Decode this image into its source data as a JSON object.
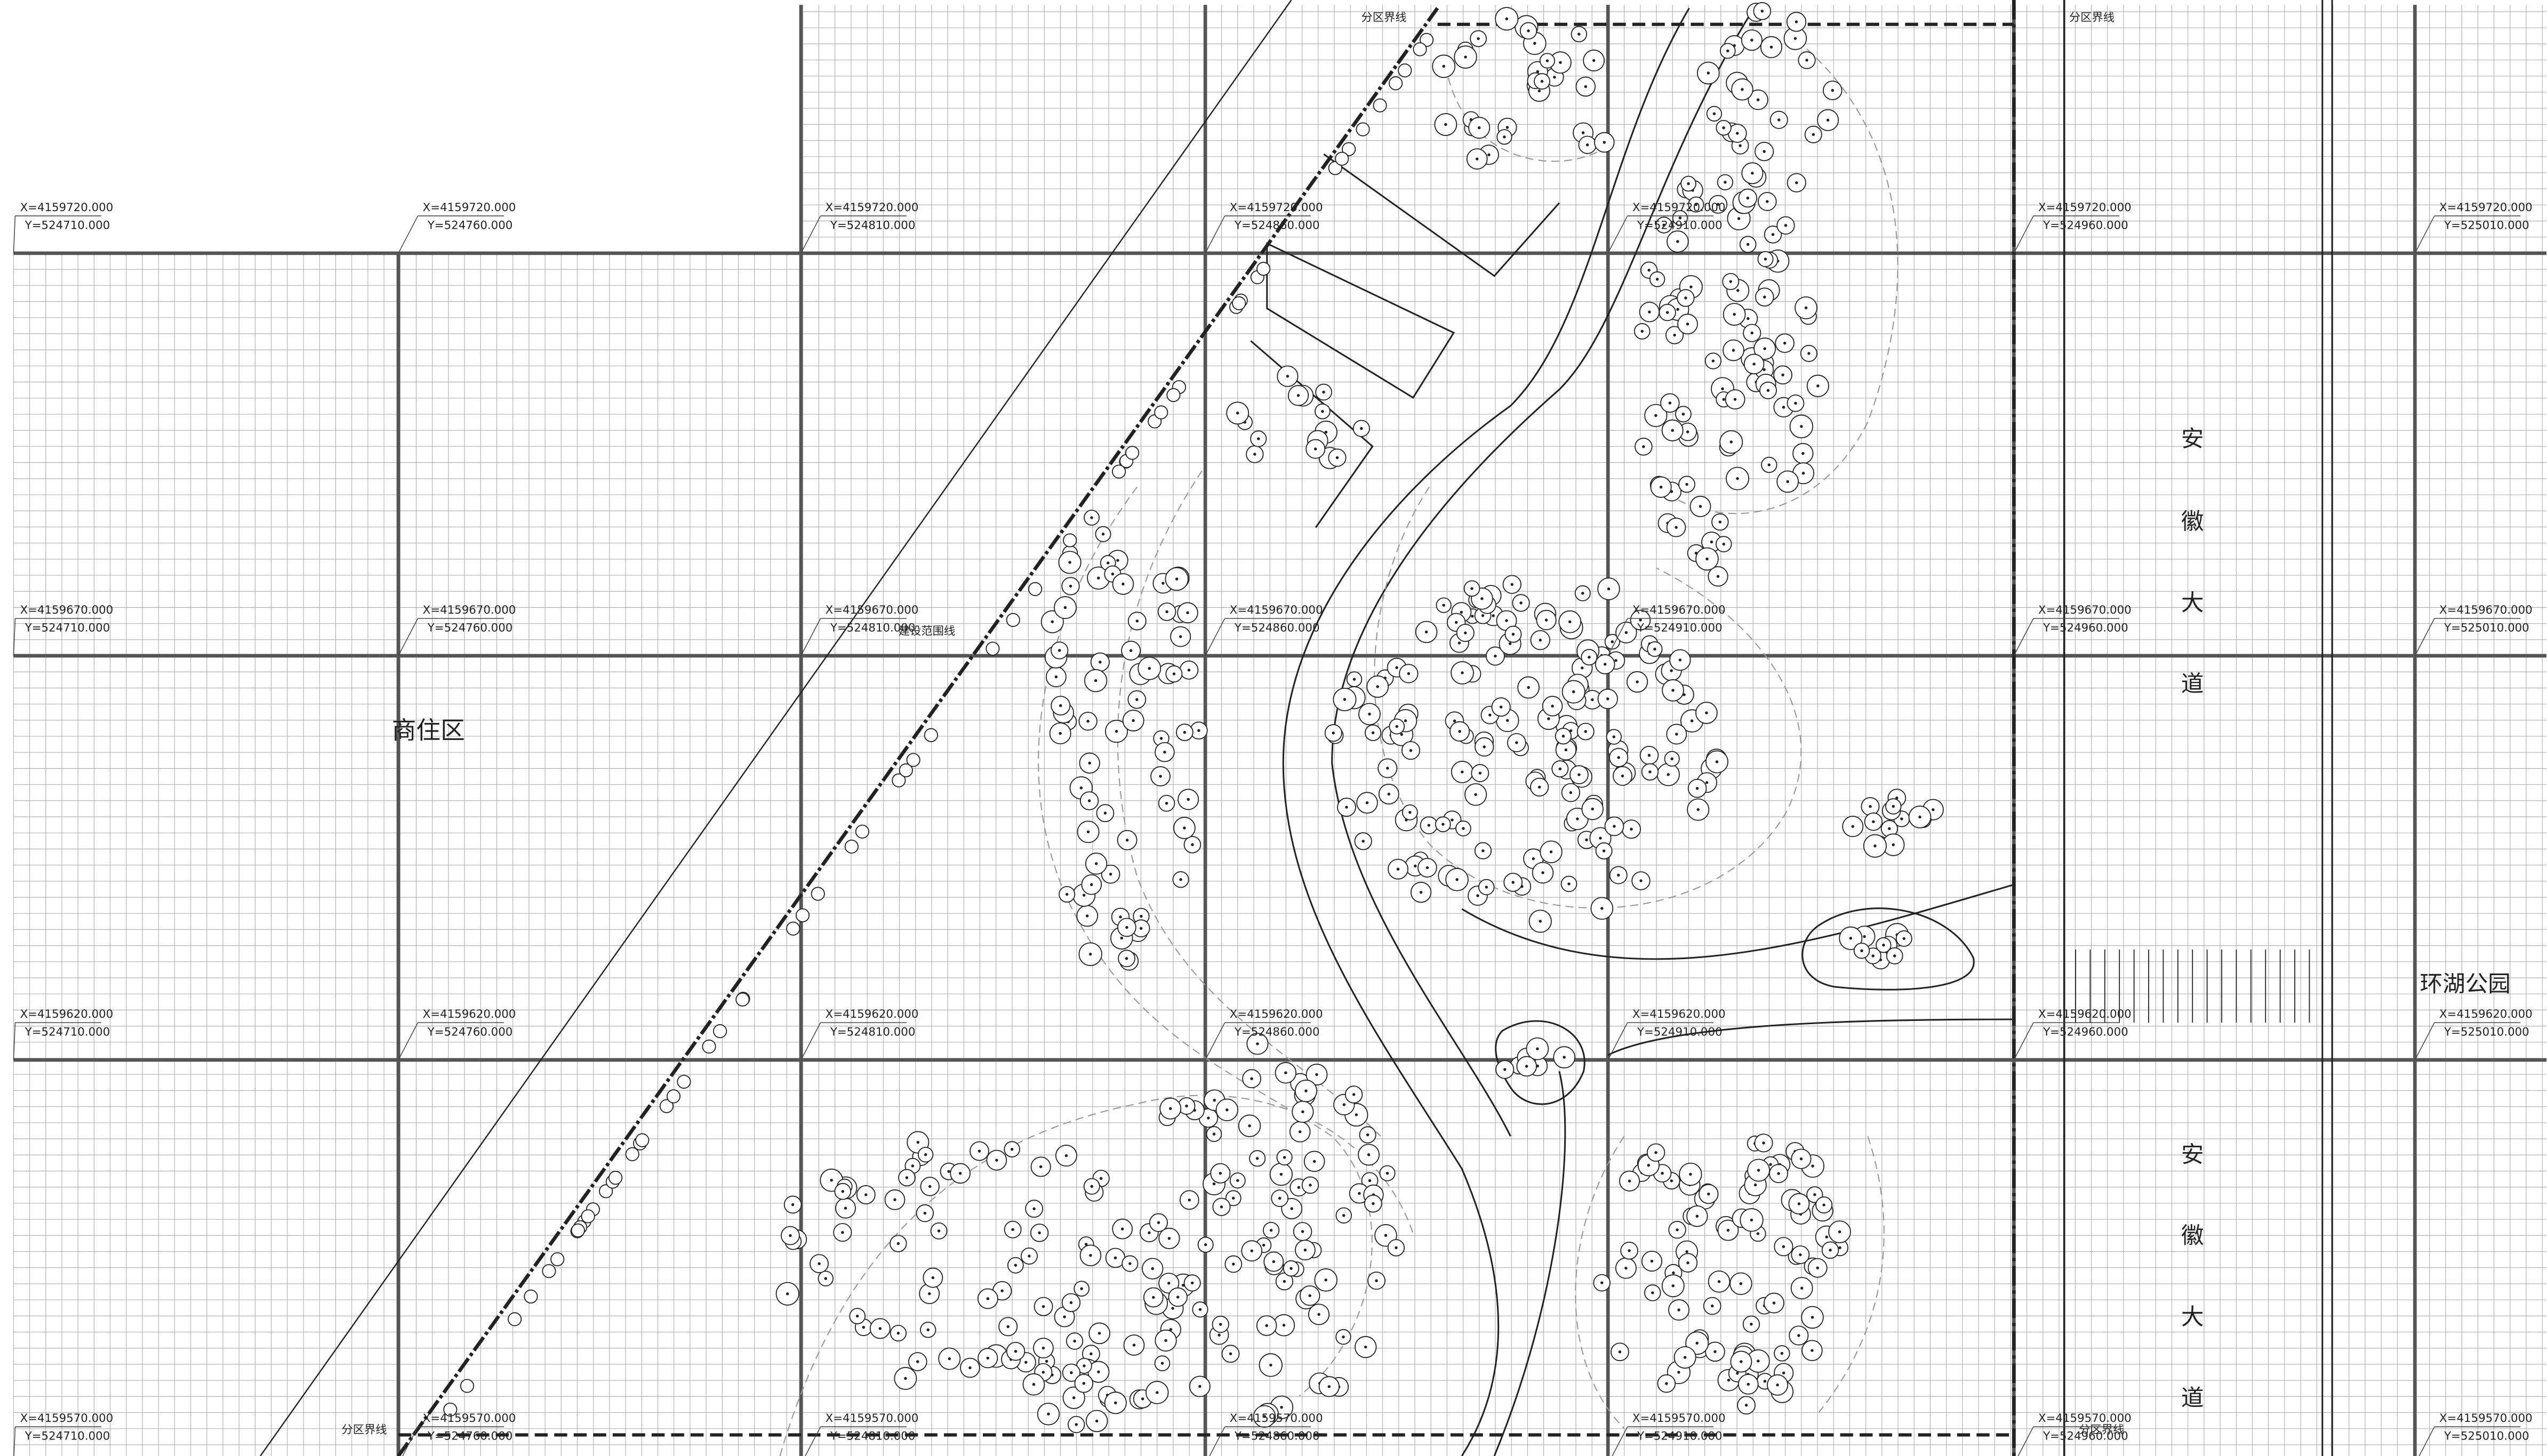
{
  "labels": {
    "boundary": "分区界线",
    "construction": "建设范围线",
    "residential": "商住区",
    "park": "环湖公园",
    "road": [
      "安",
      "徽",
      "大",
      "道"
    ]
  },
  "coordinates": {
    "x": [
      "X=4159720.000",
      "X=4159670.000",
      "X=4159620.000",
      "X=4159570.000"
    ],
    "y": [
      "Y=524710.000",
      "Y=524760.000",
      "Y=524810.000",
      "Y=524860.000",
      "Y=524910.000",
      "Y=524960.000",
      "Y=525010.000"
    ]
  }
}
